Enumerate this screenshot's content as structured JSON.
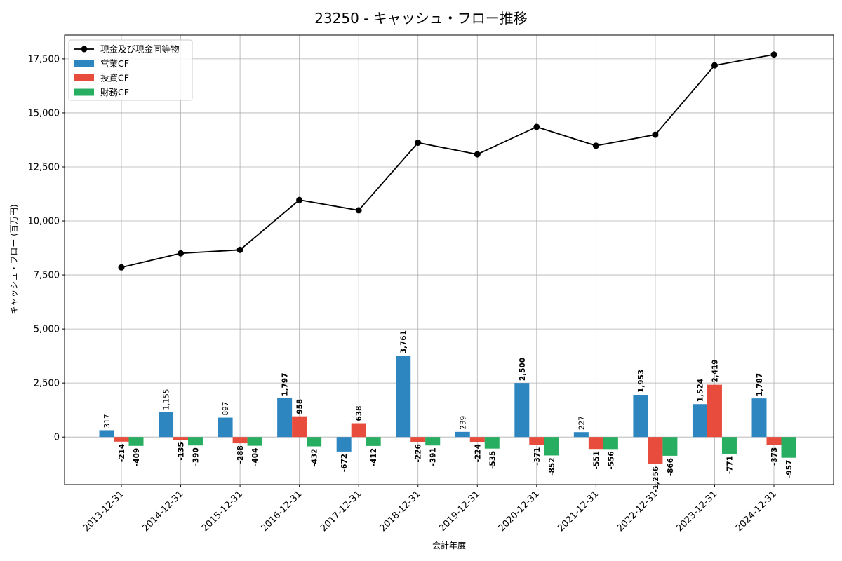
{
  "chart_data": {
    "type": "bar",
    "title": "23250 - キャッシュ・フロー推移",
    "xlabel": "会計年度",
    "ylabel": "キャッシュ・フロー (百万円)",
    "categories": [
      "2013-12-31",
      "2014-12-31",
      "2015-12-31",
      "2016-12-31",
      "2017-12-31",
      "2018-12-31",
      "2019-12-31",
      "2020-12-31",
      "2021-12-31",
      "2022-12-31",
      "2023-12-31",
      "2024-12-31"
    ],
    "ylim": [
      -2200,
      18600
    ],
    "yticks": [
      0,
      2500,
      5000,
      7500,
      10000,
      12500,
      15000,
      17500
    ],
    "ytick_labels": [
      "0",
      "2,500",
      "5,000",
      "7,500",
      "10,000",
      "12,500",
      "15,000",
      "17,500"
    ],
    "grid": true,
    "legend_placement": "top-left",
    "series": [
      {
        "name": "営業CF",
        "kind": "bar",
        "color": "#2e86c1",
        "values": [
          317,
          1155,
          897,
          1797,
          -672,
          3761,
          239,
          2500,
          227,
          1953,
          1524,
          1787
        ],
        "labels": [
          "317",
          "1,155",
          "897",
          "1,797",
          "-672",
          "3,761",
          "239",
          "2,500",
          "227",
          "1,953",
          "1,524",
          "1,787"
        ]
      },
      {
        "name": "投資CF",
        "kind": "bar",
        "color": "#e74c3c",
        "values": [
          -214,
          -135,
          -288,
          958,
          638,
          -226,
          -224,
          -371,
          -551,
          -1256,
          2419,
          -373
        ],
        "labels": [
          "-214",
          "-135",
          "-288",
          "958",
          "638",
          "-226",
          "-224",
          "-371",
          "-551",
          "-1,256",
          "2,419",
          "-373"
        ]
      },
      {
        "name": "財務CF",
        "kind": "bar",
        "color": "#27ae60",
        "values": [
          -409,
          -390,
          -404,
          -432,
          -412,
          -391,
          -535,
          -852,
          -556,
          -866,
          -771,
          -957
        ],
        "labels": [
          "-409",
          "-390",
          "-404",
          "-432",
          "-412",
          "-391",
          "-535",
          "-852",
          "-556",
          "-866",
          "-771",
          "-957"
        ]
      },
      {
        "name": "現金及び現金同等物",
        "kind": "line",
        "color": "#000000",
        "values": [
          7850,
          8500,
          8660,
          10970,
          10490,
          13620,
          13080,
          14350,
          13480,
          13990,
          17200,
          17700
        ]
      }
    ]
  }
}
